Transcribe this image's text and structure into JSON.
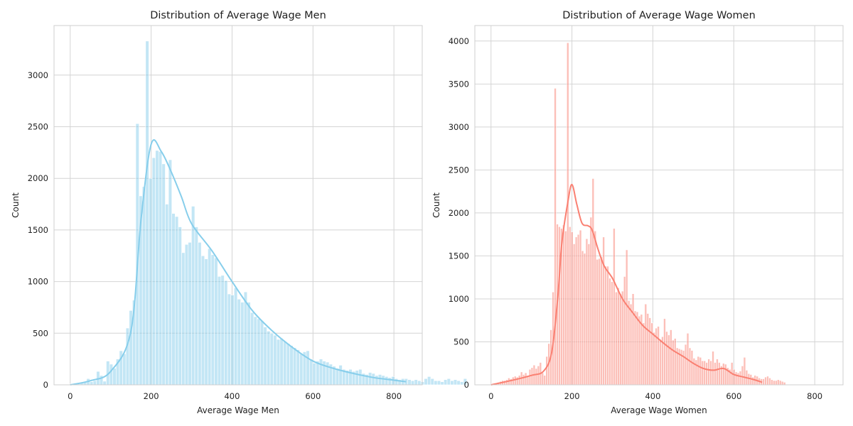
{
  "chart_data": [
    {
      "type": "histogram",
      "title": "Distribution of Average Wage Men",
      "xlabel": "Average Wage Men",
      "ylabel": "Count",
      "xlim": [
        -40,
        870
      ],
      "ylim": [
        0,
        3480
      ],
      "xticks": [
        0,
        200,
        400,
        600,
        800
      ],
      "yticks": [
        0,
        500,
        1000,
        1500,
        2000,
        2500,
        3000
      ],
      "grid": true,
      "bar_color": "#87ceeb",
      "kde_color": "#87ceeb",
      "bin_width": 8.1,
      "bins_x0": 0,
      "counts": [
        10,
        5,
        15,
        20,
        25,
        60,
        30,
        40,
        130,
        90,
        35,
        230,
        200,
        160,
        250,
        330,
        300,
        550,
        720,
        820,
        2530,
        1830,
        1920,
        3330,
        2000,
        2200,
        2270,
        2260,
        2140,
        1750,
        2180,
        1660,
        1630,
        1530,
        1280,
        1360,
        1380,
        1730,
        1530,
        1380,
        1250,
        1220,
        1320,
        1260,
        1230,
        1050,
        1060,
        1010,
        880,
        870,
        940,
        830,
        800,
        900,
        800,
        700,
        660,
        640,
        620,
        560,
        520,
        500,
        480,
        440,
        450,
        420,
        400,
        380,
        360,
        340,
        300,
        320,
        330,
        250,
        210,
        230,
        250,
        230,
        220,
        200,
        180,
        160,
        190,
        150,
        140,
        150,
        130,
        140,
        150,
        110,
        100,
        120,
        110,
        90,
        100,
        90,
        80,
        70,
        80,
        60,
        50,
        60,
        60,
        50,
        40,
        50,
        40,
        30,
        60,
        80,
        60,
        40,
        40,
        30,
        50,
        60,
        40,
        50,
        40,
        30,
        60
      ],
      "kde_x": [
        0,
        50,
        100,
        150,
        175,
        200,
        225,
        250,
        275,
        300,
        350,
        400,
        450,
        500,
        550,
        600,
        650,
        700,
        750,
        800,
        830
      ],
      "kde_y": [
        0,
        40,
        130,
        520,
        1600,
        2330,
        2260,
        2060,
        1820,
        1560,
        1300,
        1000,
        720,
        520,
        360,
        230,
        160,
        110,
        70,
        45,
        30
      ]
    },
    {
      "type": "histogram",
      "title": "Distribution of Average Wage Women",
      "xlabel": "Average Wage Women",
      "ylabel": "Count",
      "xlim": [
        -40,
        870
      ],
      "ylim": [
        0,
        4180
      ],
      "xticks": [
        0,
        200,
        400,
        600,
        800
      ],
      "yticks": [
        0,
        500,
        1000,
        1500,
        2000,
        2500,
        3000,
        3500,
        4000
      ],
      "grid": true,
      "bar_color": "#fa8072",
      "kde_color": "#fa8072",
      "bin_width": 5.2,
      "bins_x0": 0,
      "counts": [
        10,
        10,
        20,
        30,
        40,
        50,
        50,
        60,
        80,
        70,
        90,
        100,
        90,
        110,
        150,
        120,
        140,
        110,
        180,
        200,
        230,
        190,
        220,
        260,
        140,
        110,
        330,
        480,
        640,
        1080,
        3450,
        1870,
        1840,
        1820,
        1860,
        1790,
        3980,
        1840,
        1780,
        1640,
        1720,
        1750,
        1800,
        1560,
        1530,
        1700,
        1640,
        1950,
        2400,
        1790,
        1460,
        1470,
        1490,
        1720,
        1380,
        1380,
        1240,
        1200,
        1820,
        1080,
        1130,
        1060,
        1090,
        1260,
        1570,
        980,
        940,
        1060,
        860,
        850,
        800,
        820,
        720,
        940,
        830,
        780,
        720,
        610,
        660,
        680,
        530,
        560,
        770,
        620,
        580,
        640,
        520,
        540,
        430,
        420,
        410,
        400,
        470,
        600,
        430,
        400,
        310,
        290,
        330,
        320,
        280,
        280,
        260,
        300,
        280,
        390,
        260,
        300,
        260,
        220,
        250,
        240,
        200,
        180,
        260,
        180,
        150,
        140,
        160,
        220,
        320,
        170,
        130,
        120,
        90,
        110,
        100,
        80,
        70,
        70,
        90,
        100,
        80,
        60,
        50,
        50,
        60,
        50,
        40,
        30
      ],
      "kde_x": [
        0,
        50,
        100,
        130,
        150,
        165,
        175,
        190,
        200,
        212,
        225,
        240,
        250,
        265,
        280,
        300,
        325,
        350,
        375,
        400,
        425,
        450,
        475,
        500,
        525,
        550,
        575,
        600,
        625,
        650,
        670
      ],
      "kde_y": [
        0,
        50,
        110,
        160,
        380,
        1020,
        1650,
        2130,
        2330,
        2100,
        1880,
        1850,
        1800,
        1570,
        1380,
        1240,
        1000,
        840,
        690,
        590,
        490,
        400,
        330,
        250,
        190,
        170,
        190,
        120,
        90,
        60,
        30
      ]
    }
  ]
}
